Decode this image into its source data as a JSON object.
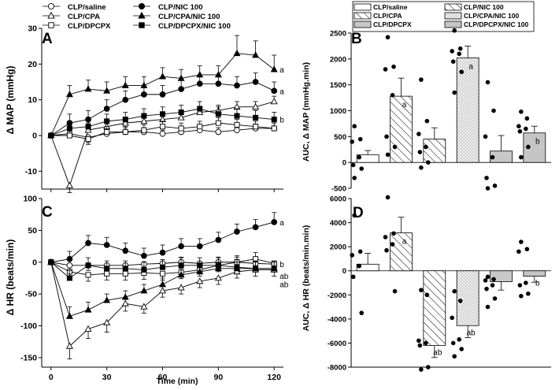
{
  "chart_data": [
    {
      "panel": "A",
      "type": "line",
      "ylabel": "Δ MAP (mmHg)",
      "xlabel": "",
      "xlim": [
        -5,
        125
      ],
      "ylim": [
        -15,
        30
      ],
      "xticks": [
        0,
        30,
        60,
        90,
        120
      ],
      "xtick_labels": [
        "0",
        "30",
        "60",
        "90",
        "120"
      ],
      "yticks": [
        -10,
        0,
        10,
        20,
        30
      ],
      "ytick_labels": [
        "-10",
        "0",
        "10",
        "20",
        "30"
      ],
      "x": [
        0,
        10,
        20,
        30,
        40,
        50,
        60,
        70,
        80,
        90,
        100,
        110,
        120
      ],
      "series": [
        {
          "name": "CLP/saline",
          "marker": "circle-open",
          "values": [
            0,
            0.5,
            -0.5,
            0.5,
            1,
            1,
            0.5,
            1,
            1.5,
            1,
            1.5,
            2,
            2
          ],
          "err": [
            0,
            1.5,
            1.5,
            1.2,
            1.2,
            1.2,
            1,
            1.2,
            1.2,
            1.2,
            1.2,
            1.2,
            1.5
          ]
        },
        {
          "name": "CLP/CPA",
          "marker": "triangle-open",
          "values": [
            0,
            -14,
            1.5,
            2.5,
            3.5,
            4,
            4.5,
            5,
            6.5,
            7,
            8,
            8,
            9.5
          ],
          "err": [
            0,
            2,
            2,
            1.5,
            1.5,
            1.5,
            1.5,
            1.5,
            1.5,
            1.5,
            1.5,
            1.5,
            1.5
          ]
        },
        {
          "name": "CLP/DPCPX",
          "marker": "square-open",
          "values": [
            0,
            0,
            -1,
            1,
            1,
            1.5,
            2.5,
            2,
            2.5,
            3.5,
            3,
            2.5,
            2
          ],
          "err": [
            0,
            1.5,
            1.5,
            1.5,
            1.5,
            1.5,
            1.5,
            1.5,
            1.5,
            1.5,
            1.5,
            1.5,
            1.5
          ]
        },
        {
          "name": "CLP/NIC 100",
          "marker": "circle-filled",
          "values": [
            0,
            3.5,
            4.5,
            7.5,
            10,
            11.5,
            11.5,
            13,
            14.5,
            14.5,
            14,
            15,
            12.5
          ],
          "err": [
            0,
            2.5,
            2.5,
            2.5,
            2.5,
            2.5,
            2.5,
            2.5,
            2.5,
            2.5,
            2.5,
            2.5,
            2.5
          ]
        },
        {
          "name": "CLP/CPA/NIC 100",
          "marker": "triangle-filled",
          "values": [
            0,
            11.5,
            13,
            12.5,
            14,
            14,
            16.5,
            16,
            17,
            17,
            23,
            22.5,
            18.5
          ],
          "err": [
            0,
            2.5,
            2.5,
            2.5,
            2.5,
            2.5,
            2.5,
            2.5,
            2.5,
            2.5,
            5,
            4,
            4
          ]
        },
        {
          "name": "CLP/DPCPX/NIC 100",
          "marker": "square-filled",
          "values": [
            0,
            2,
            2.5,
            4,
            4.5,
            5.5,
            6,
            6.5,
            7.5,
            6,
            5.5,
            5,
            4.5
          ],
          "err": [
            0,
            2,
            2,
            2,
            2,
            2,
            2,
            2,
            2,
            2,
            2,
            2,
            2
          ]
        }
      ],
      "annotations": [
        {
          "text": "a",
          "series": "CLP/CPA/NIC 100"
        },
        {
          "text": "a",
          "series": "CLP/NIC 100"
        },
        {
          "text": "b",
          "series": "CLP/DPCPX/NIC 100"
        }
      ]
    },
    {
      "panel": "C",
      "type": "line",
      "ylabel": "Δ HR (beats/min)",
      "xlabel": "Time (min)",
      "xlim": [
        -5,
        125
      ],
      "ylim": [
        -165,
        100
      ],
      "xticks": [
        0,
        30,
        60,
        90,
        120
      ],
      "xtick_labels": [
        "0",
        "30",
        "60",
        "90",
        "120"
      ],
      "yticks": [
        -150,
        -100,
        -50,
        0,
        50,
        100
      ],
      "ytick_labels": [
        "-150",
        "-100",
        "-50",
        "0",
        "50",
        "100"
      ],
      "x": [
        0,
        10,
        20,
        30,
        40,
        50,
        60,
        70,
        80,
        90,
        100,
        110,
        120
      ],
      "series": [
        {
          "name": "CLP/saline",
          "marker": "circle-open",
          "values": [
            0,
            -5,
            -5,
            -5,
            -5,
            -3,
            -2,
            0,
            -2,
            0,
            0,
            -2,
            -3
          ],
          "err": [
            0,
            8,
            8,
            8,
            8,
            8,
            8,
            8,
            8,
            8,
            8,
            8,
            8
          ]
        },
        {
          "name": "CLP/CPA",
          "marker": "triangle-open",
          "values": [
            0,
            -132,
            -105,
            -95,
            -65,
            -70,
            -45,
            -40,
            -30,
            -25,
            -15,
            -12,
            -12
          ],
          "err": [
            0,
            20,
            15,
            15,
            12,
            10,
            10,
            10,
            10,
            10,
            10,
            10,
            10
          ]
        },
        {
          "name": "CLP/DPCPX",
          "marker": "square-open",
          "values": [
            0,
            -15,
            -20,
            -18,
            -18,
            -17,
            -18,
            -16,
            -12,
            -5,
            0,
            5,
            -2
          ],
          "err": [
            0,
            10,
            10,
            10,
            10,
            10,
            10,
            10,
            10,
            10,
            10,
            10,
            10
          ]
        },
        {
          "name": "CLP/NIC 100",
          "marker": "circle-filled",
          "values": [
            0,
            5,
            30,
            27,
            18,
            10,
            15,
            25,
            25,
            35,
            48,
            55,
            63
          ],
          "err": [
            0,
            12,
            12,
            12,
            12,
            12,
            12,
            12,
            12,
            12,
            12,
            12,
            15
          ]
        },
        {
          "name": "CLP/CPA/NIC 100",
          "marker": "triangle-filled",
          "values": [
            0,
            -85,
            -75,
            -60,
            -55,
            -45,
            -35,
            -20,
            -15,
            -10,
            -10,
            -10,
            -10
          ],
          "err": [
            0,
            15,
            12,
            10,
            10,
            10,
            10,
            10,
            10,
            10,
            10,
            10,
            10
          ]
        },
        {
          "name": "CLP/DPCPX/NIC 100",
          "marker": "square-filled",
          "values": [
            0,
            -25,
            -5,
            -10,
            -10,
            -12,
            -8,
            -5,
            -5,
            -5,
            -8,
            -10,
            -10
          ],
          "err": [
            0,
            12,
            12,
            12,
            12,
            12,
            12,
            12,
            12,
            12,
            12,
            12,
            12
          ]
        }
      ],
      "annotations": [
        {
          "text": "a",
          "series": "CLP/NIC 100"
        },
        {
          "text": "b",
          "series": "CLP/saline"
        },
        {
          "text": "ab",
          "series": "CLP/CPA/NIC 100"
        },
        {
          "text": "ab",
          "series": "CLP/CPA"
        }
      ]
    },
    {
      "panel": "B",
      "type": "bar",
      "ylabel": "AUC, Δ MAP (mmHg.min)",
      "ylim": [
        -500,
        2500
      ],
      "yticks": [
        -500,
        0,
        500,
        1000,
        1500,
        2000,
        2500
      ],
      "ytick_labels": [
        "-500",
        "0",
        "500",
        "1000",
        "1500",
        "2000",
        "2500"
      ],
      "categories": [
        "CLP/saline",
        "CLP/CPA",
        "CLP/DPCPX",
        "CLP/NIC 100",
        "CLP/CPA/NIC 100",
        "CLP/DPCPX/NIC 100"
      ],
      "values": [
        150,
        1280,
        450,
        2020,
        220,
        570
      ],
      "err": [
        80,
        350,
        220,
        230,
        300,
        130
      ],
      "points": [
        [
          700,
          450,
          400,
          100,
          -50,
          -120,
          -300
        ],
        [
          2420,
          1850,
          1800,
          1300,
          500,
          300,
          150
        ],
        [
          1600,
          800,
          550,
          300,
          200,
          0,
          -100
        ],
        [
          2550,
          2200,
          2150,
          2100,
          1950,
          1750,
          1350
        ],
        [
          1550,
          1000,
          500,
          100,
          -300,
          -450,
          -500
        ],
        [
          980,
          850,
          700,
          650,
          600,
          300,
          100
        ]
      ],
      "annotations": [
        "",
        "a",
        "",
        "a",
        "",
        "b"
      ]
    },
    {
      "panel": "D",
      "type": "bar",
      "ylabel": "AUC, Δ HR (beats/min.min)",
      "ylim": [
        -8000,
        6000
      ],
      "yticks": [
        -8000,
        -6000,
        -4000,
        -2000,
        0,
        2000,
        4000,
        6000
      ],
      "ytick_labels": [
        "-8000",
        "-6000",
        "-4000",
        "-2000",
        "0",
        "2000",
        "4000",
        "6000"
      ],
      "categories": [
        "CLP/saline",
        "CLP/CPA",
        "CLP/DPCPX",
        "CLP/NIC 100",
        "CLP/CPA/NIC 100",
        "CLP/DPCPX/NIC 100"
      ],
      "values": [
        550,
        3150,
        -6200,
        -4550,
        -900,
        -450
      ],
      "err": [
        900,
        1300,
        1000,
        1000,
        700,
        500
      ],
      "points": [
        [
          4600,
          1600,
          1300,
          400,
          -500,
          -3500
        ],
        [
          6100,
          3100,
          2800,
          2200,
          1700,
          -1700
        ],
        [
          -1600,
          -2000,
          -5800,
          -6000,
          -6200,
          -8000,
          -8200
        ],
        [
          -1700,
          -2500,
          -3900,
          -5700,
          -6000,
          -6500,
          -7100
        ],
        [
          -500,
          -700,
          -800,
          -1200,
          -1500,
          -2300,
          -3000
        ],
        [
          2400,
          1800,
          1600,
          -1000,
          -1200,
          -1900,
          -2100
        ]
      ],
      "annotations": [
        "",
        "a",
        "ab",
        "ab",
        "",
        "b"
      ]
    }
  ],
  "left_legend": [
    {
      "label": "CLP/saline",
      "marker": "circle-open"
    },
    {
      "label": "CLP/NIC 100",
      "marker": "circle-filled"
    },
    {
      "label": "CLP/CPA",
      "marker": "triangle-open"
    },
    {
      "label": "CLP/CPA/NIC 100",
      "marker": "triangle-filled"
    },
    {
      "label": "CLP/DPCPX",
      "marker": "square-open"
    },
    {
      "label": "CLP/DPCPX/NIC 100",
      "marker": "square-filled"
    }
  ],
  "right_legend": [
    {
      "label": "CLP/saline",
      "pattern": "plain"
    },
    {
      "label": "CLP/NIC 100",
      "pattern": "hatch"
    },
    {
      "label": "CLP/CPA",
      "pattern": "hatch"
    },
    {
      "label": "CLP/CPA/NIC 100",
      "pattern": "stipple"
    },
    {
      "label": "CLP/DPCPX",
      "pattern": "gray"
    },
    {
      "label": "CLP/DPCPX/NIC 100",
      "pattern": "gray-stipple"
    }
  ],
  "colors": {
    "ink": "#000000",
    "gray_fill": "#c8c8c8",
    "stipple_fill": "#e6e6e6"
  }
}
